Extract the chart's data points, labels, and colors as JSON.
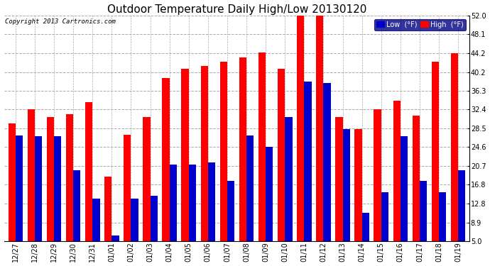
{
  "title": "Outdoor Temperature Daily High/Low 20130120",
  "copyright": "Copyright 2013 Cartronics.com",
  "legend_low": "Low  (°F)",
  "legend_high": "High  (°F)",
  "categories": [
    "12/27",
    "12/28",
    "12/29",
    "12/30",
    "12/31",
    "01/01",
    "01/02",
    "01/03",
    "01/04",
    "01/05",
    "01/06",
    "01/07",
    "01/08",
    "01/09",
    "01/10",
    "01/11",
    "01/12",
    "01/13",
    "01/14",
    "01/15",
    "01/16",
    "01/17",
    "01/18",
    "01/19"
  ],
  "high": [
    29.5,
    32.4,
    30.9,
    31.5,
    34.0,
    18.5,
    27.1,
    30.8,
    38.9,
    40.9,
    41.4,
    42.3,
    43.2,
    44.3,
    40.9,
    52.0,
    52.0,
    30.9,
    28.4,
    32.4,
    34.2,
    31.2,
    42.3,
    44.2
  ],
  "low": [
    27.0,
    26.8,
    26.8,
    19.7,
    13.8,
    6.2,
    13.8,
    14.5,
    21.0,
    21.0,
    21.4,
    17.5,
    27.0,
    24.6,
    30.8,
    38.2,
    37.9,
    28.4,
    10.9,
    15.2,
    26.8,
    17.5,
    15.2,
    19.8
  ],
  "bar_color_high": "#ff0000",
  "bar_color_low": "#0000cc",
  "background_color": "#ffffff",
  "grid_color": "#aaaaaa",
  "ylim_min": 5.0,
  "ylim_max": 52.0,
  "yticks": [
    5.0,
    8.9,
    12.8,
    16.8,
    20.7,
    24.6,
    28.5,
    32.4,
    36.3,
    40.2,
    44.2,
    48.1,
    52.0
  ],
  "title_fontsize": 11,
  "tick_fontsize": 7,
  "legend_fontsize": 7,
  "copyright_fontsize": 6.5
}
